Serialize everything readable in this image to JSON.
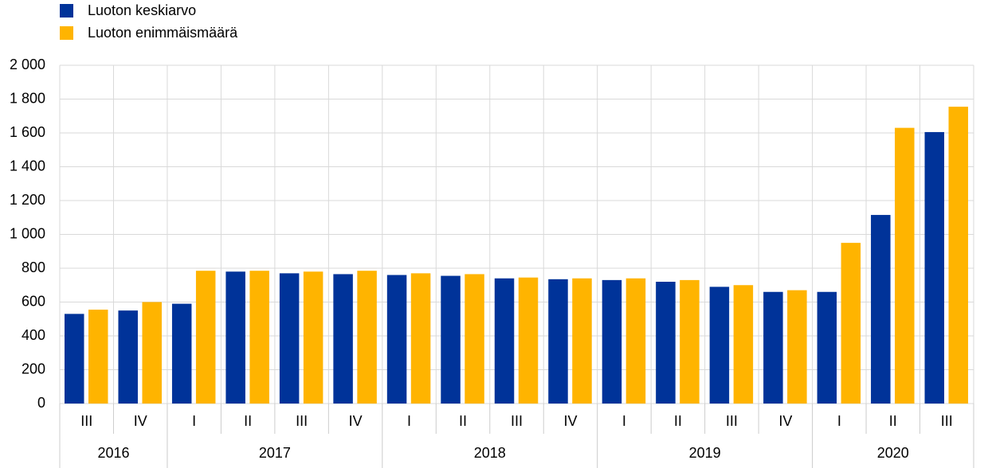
{
  "chart_data": {
    "type": "bar",
    "groups": [
      {
        "label": "2016",
        "categories": [
          "III",
          "IV"
        ]
      },
      {
        "label": "2017",
        "categories": [
          "I",
          "II",
          "III",
          "IV"
        ]
      },
      {
        "label": "2018",
        "categories": [
          "I",
          "II",
          "III",
          "IV"
        ]
      },
      {
        "label": "2019",
        "categories": [
          "I",
          "II",
          "III",
          "IV"
        ]
      },
      {
        "label": "2020",
        "categories": [
          "I",
          "II",
          "III"
        ]
      }
    ],
    "series": [
      {
        "name": "Luoton keskiarvo",
        "color": "#003399",
        "values": [
          530,
          550,
          590,
          780,
          770,
          765,
          760,
          755,
          740,
          735,
          730,
          720,
          690,
          660,
          660,
          1115,
          1605
        ]
      },
      {
        "name": "Luoton enimmäismäärä",
        "color": "#ffb400",
        "values": [
          555,
          600,
          785,
          785,
          780,
          785,
          770,
          765,
          745,
          740,
          740,
          730,
          700,
          670,
          950,
          1630,
          1755
        ]
      }
    ],
    "ylim": [
      0,
      2000
    ],
    "yticks": [
      0,
      200,
      400,
      600,
      800,
      {
        "value": 1000,
        "label": "1 000"
      },
      {
        "value": 1200,
        "label": "1 200"
      },
      {
        "value": 1400,
        "label": "1 400"
      },
      {
        "value": 1600,
        "label": "1 600"
      },
      {
        "value": 1800,
        "label": "1 800"
      },
      {
        "value": 2000,
        "label": "2 000"
      }
    ],
    "grid": true,
    "legend": "top-left"
  }
}
